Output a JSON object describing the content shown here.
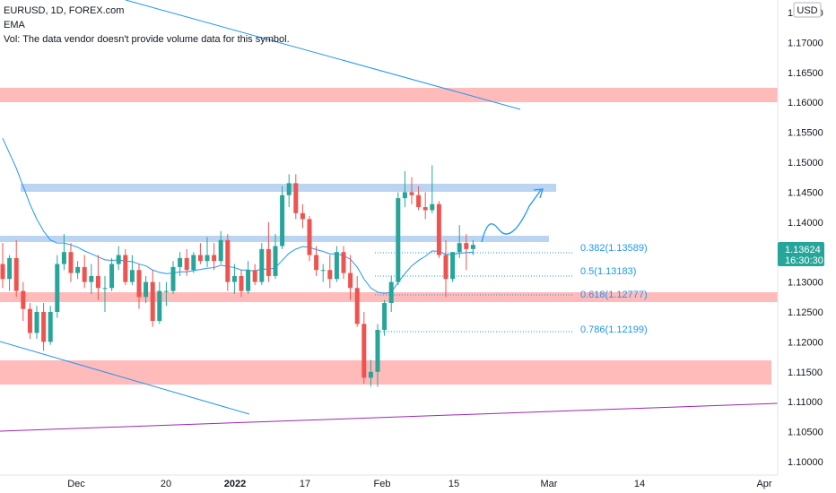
{
  "legend": {
    "symbol_line": "EURUSD, 1D, FOREX.com",
    "indicator": "EMA",
    "volume_note": "Vol: The data vendor doesn't provide volume data for this symbol."
  },
  "price_axis": {
    "currency": "USD",
    "ticks": [
      "1.17500",
      "1.17000",
      "1.16500",
      "1.16000",
      "1.15500",
      "1.15000",
      "1.14500",
      "1.14000",
      "1.13500",
      "1.13000",
      "1.12500",
      "1.12000",
      "1.11500",
      "1.11000",
      "1.10500",
      "1.10000"
    ],
    "current_price": "1.13624",
    "countdown": "16:30:30"
  },
  "time_axis": {
    "ticks": [
      "Dec",
      "20",
      "2022",
      "17",
      "Feb",
      "15",
      "Mar",
      "14",
      "Apr"
    ]
  },
  "fib_labels": [
    "0.382(1.13589)",
    "0.5(1.13183)",
    "0.618(1.12777)",
    "0.786(1.12199)"
  ],
  "colors": {
    "up": "#26a69a",
    "down": "#ef5350",
    "ema": "#2196f3",
    "trendline": "#2196f3",
    "purple_line": "#9c27b0",
    "resistance_zone": "#ffb3b3",
    "blue_zone": "#bbd4f2",
    "price_badge": "#26a69a"
  },
  "chart_data": {
    "type": "candlestick",
    "symbol": "EURUSD",
    "timeframe": "1D",
    "ylim": [
      1.0975,
      1.1795
    ],
    "x_ticks": [
      "Dec",
      "20",
      "2022",
      "17",
      "Feb",
      "15",
      "Mar",
      "14",
      "Apr"
    ],
    "candles": [
      {
        "o": 1.133,
        "h": 1.1365,
        "c": 1.1305,
        "l": 1.129
      },
      {
        "o": 1.1305,
        "h": 1.1345,
        "c": 1.134,
        "l": 1.1285
      },
      {
        "o": 1.134,
        "h": 1.137,
        "c": 1.1285,
        "l": 1.1275
      },
      {
        "o": 1.1285,
        "h": 1.13,
        "c": 1.1255,
        "l": 1.1235
      },
      {
        "o": 1.1255,
        "h": 1.1265,
        "c": 1.1215,
        "l": 1.1205
      },
      {
        "o": 1.1215,
        "h": 1.126,
        "c": 1.125,
        "l": 1.1205
      },
      {
        "o": 1.125,
        "h": 1.1265,
        "c": 1.12,
        "l": 1.1185
      },
      {
        "o": 1.12,
        "h": 1.126,
        "c": 1.125,
        "l": 1.1195
      },
      {
        "o": 1.125,
        "h": 1.1345,
        "c": 1.133,
        "l": 1.124
      },
      {
        "o": 1.133,
        "h": 1.138,
        "c": 1.135,
        "l": 1.132
      },
      {
        "o": 1.135,
        "h": 1.1365,
        "c": 1.1315,
        "l": 1.13
      },
      {
        "o": 1.1315,
        "h": 1.1335,
        "c": 1.1325,
        "l": 1.1305
      },
      {
        "o": 1.1325,
        "h": 1.1345,
        "c": 1.13,
        "l": 1.129
      },
      {
        "o": 1.13,
        "h": 1.133,
        "c": 1.131,
        "l": 1.128
      },
      {
        "o": 1.131,
        "h": 1.1345,
        "c": 1.129,
        "l": 1.127
      },
      {
        "o": 1.129,
        "h": 1.131,
        "c": 1.129,
        "l": 1.125
      },
      {
        "o": 1.129,
        "h": 1.134,
        "c": 1.133,
        "l": 1.1285
      },
      {
        "o": 1.133,
        "h": 1.136,
        "c": 1.1345,
        "l": 1.132
      },
      {
        "o": 1.1345,
        "h": 1.1355,
        "c": 1.13,
        "l": 1.1295
      },
      {
        "o": 1.13,
        "h": 1.1345,
        "c": 1.132,
        "l": 1.1295
      },
      {
        "o": 1.132,
        "h": 1.133,
        "c": 1.1275,
        "l": 1.1255
      },
      {
        "o": 1.1275,
        "h": 1.131,
        "c": 1.13,
        "l": 1.1265
      },
      {
        "o": 1.13,
        "h": 1.132,
        "c": 1.1235,
        "l": 1.1225
      },
      {
        "o": 1.1235,
        "h": 1.13,
        "c": 1.1285,
        "l": 1.123
      },
      {
        "o": 1.1285,
        "h": 1.13,
        "c": 1.1285,
        "l": 1.126
      },
      {
        "o": 1.1285,
        "h": 1.1335,
        "c": 1.1325,
        "l": 1.128
      },
      {
        "o": 1.1325,
        "h": 1.135,
        "c": 1.134,
        "l": 1.131
      },
      {
        "o": 1.134,
        "h": 1.1355,
        "c": 1.132,
        "l": 1.131
      },
      {
        "o": 1.132,
        "h": 1.135,
        "c": 1.1345,
        "l": 1.1315
      },
      {
        "o": 1.1345,
        "h": 1.1365,
        "c": 1.1335,
        "l": 1.133
      },
      {
        "o": 1.1335,
        "h": 1.1375,
        "c": 1.1345,
        "l": 1.1325
      },
      {
        "o": 1.1345,
        "h": 1.1365,
        "c": 1.1335,
        "l": 1.132
      },
      {
        "o": 1.1335,
        "h": 1.1385,
        "c": 1.137,
        "l": 1.133
      },
      {
        "o": 1.137,
        "h": 1.138,
        "c": 1.13,
        "l": 1.1285
      },
      {
        "o": 1.13,
        "h": 1.133,
        "c": 1.131,
        "l": 1.128
      },
      {
        "o": 1.131,
        "h": 1.132,
        "c": 1.1285,
        "l": 1.1275
      },
      {
        "o": 1.1285,
        "h": 1.1335,
        "c": 1.132,
        "l": 1.128
      },
      {
        "o": 1.132,
        "h": 1.133,
        "c": 1.13,
        "l": 1.1295
      },
      {
        "o": 1.13,
        "h": 1.1365,
        "c": 1.1355,
        "l": 1.1295
      },
      {
        "o": 1.1355,
        "h": 1.14,
        "c": 1.131,
        "l": 1.13
      },
      {
        "o": 1.131,
        "h": 1.138,
        "c": 1.136,
        "l": 1.1305
      },
      {
        "o": 1.136,
        "h": 1.146,
        "c": 1.1445,
        "l": 1.1355
      },
      {
        "o": 1.1445,
        "h": 1.148,
        "c": 1.1465,
        "l": 1.1425
      },
      {
        "o": 1.1465,
        "h": 1.148,
        "c": 1.1415,
        "l": 1.1405
      },
      {
        "o": 1.1415,
        "h": 1.143,
        "c": 1.1405,
        "l": 1.139
      },
      {
        "o": 1.1405,
        "h": 1.141,
        "c": 1.1345,
        "l": 1.1335
      },
      {
        "o": 1.1345,
        "h": 1.136,
        "c": 1.132,
        "l": 1.131
      },
      {
        "o": 1.132,
        "h": 1.133,
        "c": 1.132,
        "l": 1.13
      },
      {
        "o": 1.132,
        "h": 1.1345,
        "c": 1.1305,
        "l": 1.129
      },
      {
        "o": 1.1305,
        "h": 1.136,
        "c": 1.135,
        "l": 1.13
      },
      {
        "o": 1.135,
        "h": 1.136,
        "c": 1.1315,
        "l": 1.1305
      },
      {
        "o": 1.1315,
        "h": 1.1345,
        "c": 1.129,
        "l": 1.127
      },
      {
        "o": 1.129,
        "h": 1.131,
        "c": 1.123,
        "l": 1.1225
      },
      {
        "o": 1.123,
        "h": 1.125,
        "c": 1.114,
        "l": 1.113
      },
      {
        "o": 1.114,
        "h": 1.117,
        "c": 1.115,
        "l": 1.1125
      },
      {
        "o": 1.115,
        "h": 1.123,
        "c": 1.122,
        "l": 1.1125
      },
      {
        "o": 1.122,
        "h": 1.127,
        "c": 1.1265,
        "l": 1.121
      },
      {
        "o": 1.1265,
        "h": 1.131,
        "c": 1.13,
        "l": 1.125
      },
      {
        "o": 1.13,
        "h": 1.145,
        "c": 1.144,
        "l": 1.1295
      },
      {
        "o": 1.144,
        "h": 1.1485,
        "c": 1.145,
        "l": 1.1425
      },
      {
        "o": 1.145,
        "h": 1.1475,
        "c": 1.1445,
        "l": 1.143
      },
      {
        "o": 1.1445,
        "h": 1.146,
        "c": 1.1425,
        "l": 1.142
      },
      {
        "o": 1.1425,
        "h": 1.145,
        "c": 1.142,
        "l": 1.1405
      },
      {
        "o": 1.142,
        "h": 1.1495,
        "c": 1.143,
        "l": 1.1415
      },
      {
        "o": 1.143,
        "h": 1.1435,
        "c": 1.1345,
        "l": 1.134
      },
      {
        "o": 1.1345,
        "h": 1.137,
        "c": 1.1305,
        "l": 1.1275
      },
      {
        "o": 1.1305,
        "h": 1.135,
        "c": 1.135,
        "l": 1.13
      },
      {
        "o": 1.135,
        "h": 1.1395,
        "c": 1.1365,
        "l": 1.134
      },
      {
        "o": 1.1365,
        "h": 1.138,
        "c": 1.1355,
        "l": 1.132
      },
      {
        "o": 1.1355,
        "h": 1.137,
        "c": 1.1362,
        "l": 1.1345
      }
    ],
    "ema": [
      1.154,
      1.1515,
      1.149,
      1.146,
      1.143,
      1.1405,
      1.1385,
      1.137,
      1.1365,
      1.1365,
      1.1362,
      1.1358,
      1.1352,
      1.1347,
      1.1342,
      1.1337,
      1.1336,
      1.1337,
      1.1335,
      1.1334,
      1.133,
      1.1327,
      1.132,
      1.1316,
      1.1314,
      1.1315,
      1.1317,
      1.1317,
      1.1319,
      1.1321,
      1.1323,
      1.1324,
      1.1328,
      1.1326,
      1.1324,
      1.132,
      1.132,
      1.1318,
      1.1322,
      1.1321,
      1.1324,
      1.1336,
      1.1348,
      1.1355,
      1.1359,
      1.1358,
      1.1354,
      1.1351,
      1.1347,
      1.1347,
      1.1344,
      1.1338,
      1.1325,
      1.1305,
      1.129,
      1.1283,
      1.1281,
      1.1283,
      1.1299,
      1.1314,
      1.1327,
      1.1336,
      1.1343,
      1.1352,
      1.1351,
      1.1346,
      1.1346,
      1.1348,
      1.1349,
      1.135
    ]
  }
}
